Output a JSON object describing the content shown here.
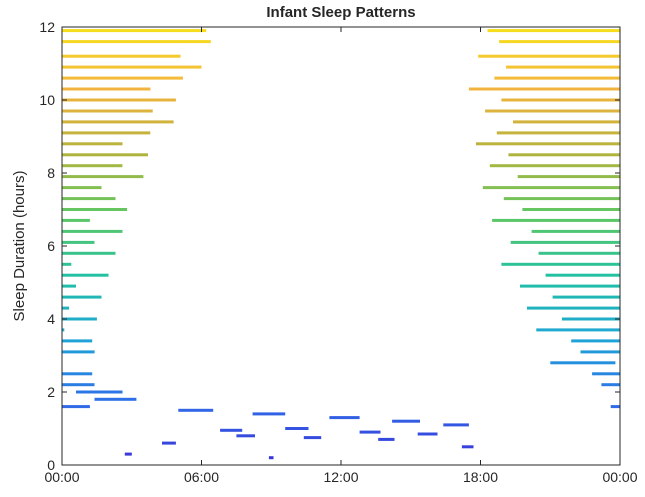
{
  "chart_data": {
    "type": "bar",
    "title": "Infant Sleep Patterns",
    "xlabel": "",
    "ylabel": "Sleep Duration (hours)",
    "xlim": [
      0,
      24
    ],
    "ylim": [
      0,
      12
    ],
    "xticks": [
      {
        "value": 0,
        "label": "00:00"
      },
      {
        "value": 6,
        "label": "06:00"
      },
      {
        "value": 12,
        "label": "12:00"
      },
      {
        "value": 18,
        "label": "18:00"
      },
      {
        "value": 24,
        "label": "00:00"
      }
    ],
    "yticks": [
      0,
      2,
      4,
      6,
      8,
      10,
      12
    ],
    "colormap": [
      "#3b2fd6",
      "#2f6ee8",
      "#1ea3d8",
      "#22c0a4",
      "#5ec862",
      "#b3b33a",
      "#f2b33e",
      "#f6e01a"
    ],
    "grid": false,
    "legend": "none",
    "episodes": [
      {
        "start": 18.3,
        "duration": 11.9
      },
      {
        "start": 18.8,
        "duration": 11.6
      },
      {
        "start": 17.9,
        "duration": 11.2
      },
      {
        "start": 19.1,
        "duration": 10.9
      },
      {
        "start": 18.6,
        "duration": 10.6
      },
      {
        "start": 17.5,
        "duration": 10.3
      },
      {
        "start": 18.9,
        "duration": 10.0
      },
      {
        "start": 18.2,
        "duration": 9.7
      },
      {
        "start": 19.4,
        "duration": 9.4
      },
      {
        "start": 18.7,
        "duration": 9.1
      },
      {
        "start": 17.8,
        "duration": 8.8
      },
      {
        "start": 19.2,
        "duration": 8.5
      },
      {
        "start": 18.4,
        "duration": 8.2
      },
      {
        "start": 19.6,
        "duration": 7.9
      },
      {
        "start": 18.1,
        "duration": 7.6
      },
      {
        "start": 19.0,
        "duration": 7.3
      },
      {
        "start": 19.8,
        "duration": 7.0
      },
      {
        "start": 18.5,
        "duration": 6.7
      },
      {
        "start": 20.2,
        "duration": 6.4
      },
      {
        "start": 19.3,
        "duration": 6.1
      },
      {
        "start": 20.5,
        "duration": 5.8
      },
      {
        "start": 18.9,
        "duration": 5.5
      },
      {
        "start": 20.8,
        "duration": 5.2
      },
      {
        "start": 19.7,
        "duration": 4.9
      },
      {
        "start": 21.1,
        "duration": 4.6
      },
      {
        "start": 20.0,
        "duration": 4.3
      },
      {
        "start": 21.5,
        "duration": 4.0
      },
      {
        "start": 20.4,
        "duration": 3.7
      },
      {
        "start": 21.9,
        "duration": 3.4
      },
      {
        "start": 22.3,
        "duration": 3.1
      },
      {
        "start": 21.0,
        "duration": 2.8
      },
      {
        "start": 22.8,
        "duration": 2.5
      },
      {
        "start": 23.2,
        "duration": 2.2
      },
      {
        "start": 0.6,
        "duration": 2.0
      },
      {
        "start": 1.4,
        "duration": 1.8
      },
      {
        "start": 23.6,
        "duration": 1.6
      },
      {
        "start": 5.0,
        "duration": 1.5
      },
      {
        "start": 8.2,
        "duration": 1.4
      },
      {
        "start": 11.5,
        "duration": 1.3
      },
      {
        "start": 14.2,
        "duration": 1.2
      },
      {
        "start": 16.4,
        "duration": 1.1
      },
      {
        "start": 9.6,
        "duration": 1.0
      },
      {
        "start": 6.8,
        "duration": 0.95
      },
      {
        "start": 12.8,
        "duration": 0.9
      },
      {
        "start": 15.3,
        "duration": 0.85
      },
      {
        "start": 7.5,
        "duration": 0.8
      },
      {
        "start": 10.4,
        "duration": 0.75
      },
      {
        "start": 13.6,
        "duration": 0.7
      },
      {
        "start": 4.3,
        "duration": 0.6
      },
      {
        "start": 17.2,
        "duration": 0.5
      },
      {
        "start": 2.7,
        "duration": 0.3
      },
      {
        "start": 8.9,
        "duration": 0.2
      }
    ]
  }
}
